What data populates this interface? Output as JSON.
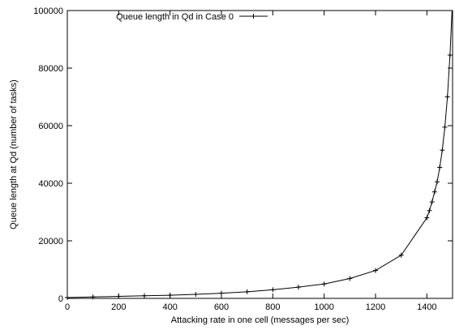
{
  "chart_data": {
    "type": "line",
    "title": "",
    "xlabel": "Attacking rate in one cell (messages per sec)",
    "ylabel": "Queue length at Qd (number of tasks)",
    "xlim": [
      0,
      1500
    ],
    "ylim": [
      0,
      100000
    ],
    "grid": false,
    "legend_position": "top-left",
    "x_ticks": [
      0,
      200,
      400,
      600,
      800,
      1000,
      1200,
      1400
    ],
    "y_ticks": [
      0,
      20000,
      40000,
      60000,
      80000,
      100000
    ],
    "x_tick_labels": [
      "0",
      "200",
      "400",
      "600",
      "800",
      "1000",
      "1200",
      "1400"
    ],
    "y_tick_labels": [
      "0",
      "20000",
      "40000",
      "60000",
      "80000",
      "100000"
    ],
    "series": [
      {
        "name": "Queue length in Qd in Case 0",
        "color": "#000000",
        "marker": "plus",
        "x": [
          0,
          100,
          200,
          300,
          400,
          500,
          600,
          700,
          800,
          900,
          1000,
          1100,
          1200,
          1300,
          1400,
          1410,
          1420,
          1430,
          1440,
          1450,
          1460,
          1470,
          1480,
          1490
        ],
        "y": [
          300,
          500,
          700,
          900,
          1100,
          1400,
          1800,
          2300,
          3000,
          3900,
          5000,
          6900,
          9700,
          15000,
          28000,
          30500,
          33500,
          37000,
          40500,
          45500,
          51500,
          59500,
          70000,
          84500
        ]
      }
    ]
  }
}
